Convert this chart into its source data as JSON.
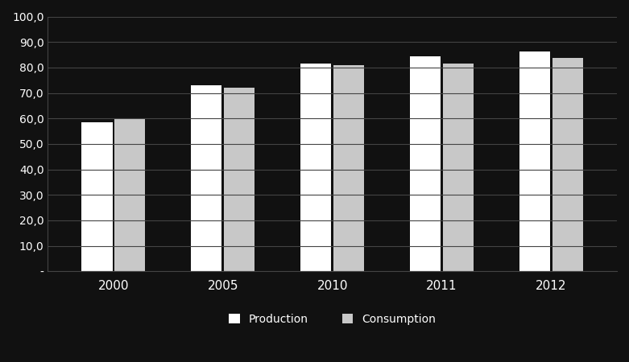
{
  "categories": [
    "2000",
    "2005",
    "2010",
    "2011",
    "2012"
  ],
  "production": [
    58.5,
    73.0,
    81.5,
    84.5,
    86.3
  ],
  "consumption": [
    60.0,
    72.0,
    81.0,
    81.5,
    83.6
  ],
  "production_color": "#ffffff",
  "consumption_color": "#c8c8c8",
  "background_color": "#111111",
  "plot_bg_color": "#111111",
  "grid_color": "#444444",
  "text_color": "#ffffff",
  "ylim": [
    0,
    100
  ],
  "yticks": [
    0,
    10,
    20,
    30,
    40,
    50,
    60,
    70,
    80,
    90,
    100
  ],
  "ytick_labels": [
    "-",
    "10,0",
    "20,0",
    "30,0",
    "40,0",
    "50,0",
    "60,0",
    "70,0",
    "80,0",
    "90,0",
    "100,0"
  ],
  "legend_labels": [
    "Production",
    "Consumption"
  ],
  "bar_width": 0.28,
  "bar_gap": 0.02,
  "bar_edge_color": "none"
}
